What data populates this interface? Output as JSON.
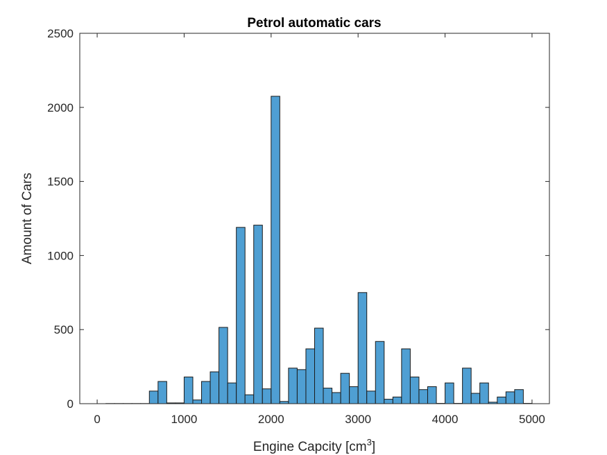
{
  "chart_data": {
    "type": "bar",
    "title": "Petrol automatic cars",
    "xlabel": "Engine Capcity [cm",
    "xlabel_sup": "3",
    "xlabel_suffix": "]",
    "ylabel": "Amount of Cars",
    "xlim": [
      -200,
      5200
    ],
    "ylim": [
      0,
      2500
    ],
    "xticks": [
      0,
      1000,
      2000,
      3000,
      4000,
      5000
    ],
    "yticks": [
      0,
      500,
      1000,
      1500,
      2000,
      2500
    ],
    "bin_width": 100,
    "bin_edges_start": 100,
    "values": [
      1,
      1,
      1,
      1,
      1,
      85,
      150,
      5,
      5,
      180,
      25,
      150,
      215,
      515,
      140,
      1190,
      60,
      1205,
      100,
      2075,
      15,
      240,
      230,
      370,
      510,
      105,
      75,
      205,
      115,
      750,
      85,
      420,
      30,
      45,
      370,
      180,
      95,
      115,
      2,
      140,
      2,
      240,
      70,
      140,
      10,
      45,
      80,
      95,
      2
    ],
    "grid": false,
    "colors": {
      "bar_fill": "#4f9fd3",
      "bar_edge": "#1a1a1a",
      "axis": "#262626"
    }
  }
}
